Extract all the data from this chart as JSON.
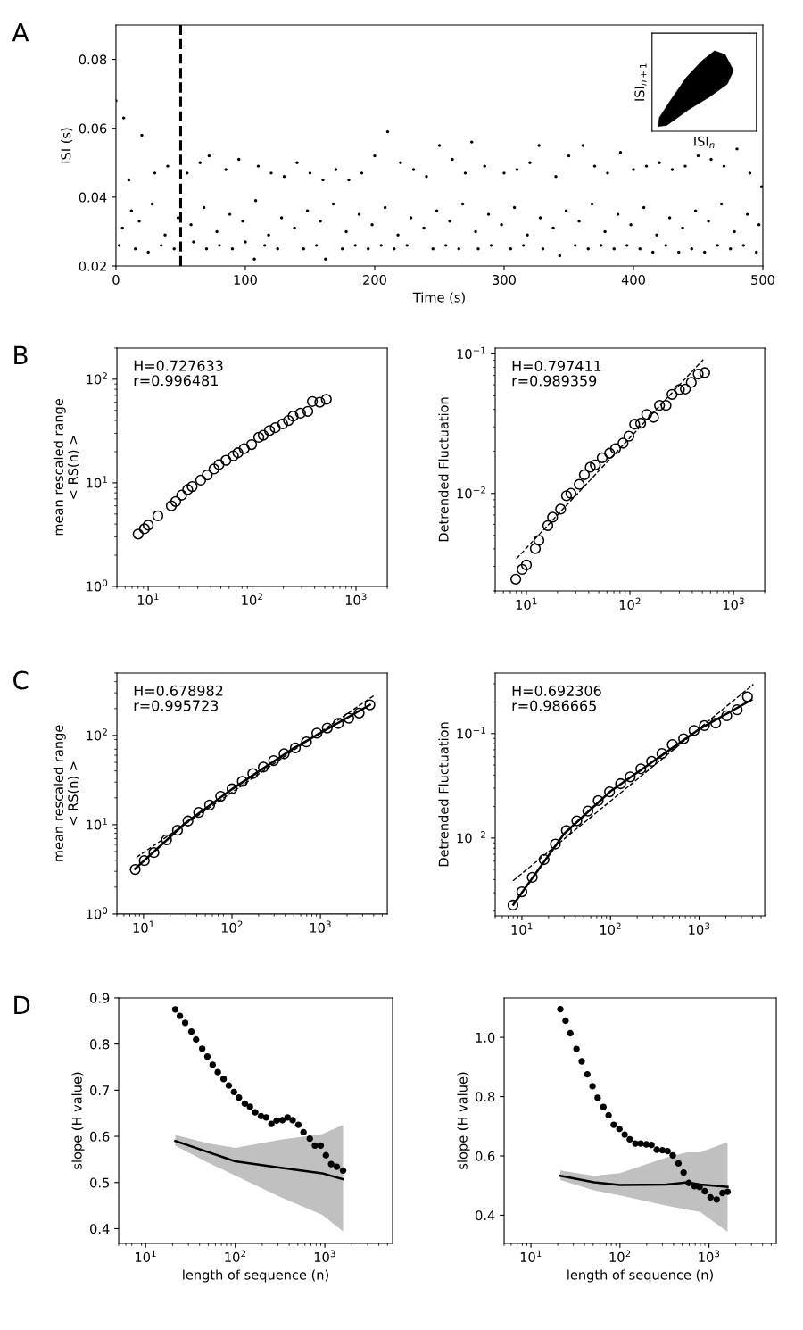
{
  "chart_data": [
    {
      "type": "scatter",
      "title": "A",
      "xlabel": "Time (s)",
      "ylabel": "ISI (s)",
      "xlim": [
        0,
        500
      ],
      "ylim": [
        0.02,
        0.09
      ],
      "xticks": [
        0,
        100,
        200,
        300,
        400,
        500
      ],
      "yticks": [
        0.02,
        0.04,
        0.06,
        0.08
      ],
      "ref_lines": [
        {
          "axis": "x",
          "value": 50,
          "line_style": "dashed",
          "color": "#000000"
        }
      ],
      "series": [
        {
          "color": "#000000",
          "marker": "circle",
          "x": [
            0,
            2.5,
            6,
            10,
            15,
            20,
            25,
            30,
            35,
            40,
            45,
            55,
            60,
            65,
            70,
            72,
            80,
            85,
            90,
            95,
            100,
            107,
            110,
            115,
            120,
            125,
            130,
            140,
            145,
            150,
            155,
            160,
            162,
            170,
            175,
            180,
            185,
            190,
            195,
            200,
            205,
            210,
            215,
            220,
            225,
            230,
            240,
            245,
            250,
            255,
            260,
            265,
            270,
            275,
            280,
            285,
            290,
            300,
            305,
            310,
            315,
            320,
            327,
            330,
            340,
            343,
            350,
            355,
            361,
            365,
            370,
            375,
            380,
            385,
            390,
            395,
            400,
            405,
            410,
            415,
            420,
            425,
            430,
            435,
            440,
            445,
            450,
            455,
            460,
            465,
            470,
            475,
            480,
            485,
            490,
            495,
            499,
            5,
            12,
            18,
            28,
            38,
            48,
            58,
            68,
            78,
            88,
            98,
            108,
            118,
            128,
            138,
            148,
            158,
            168,
            178,
            188,
            198,
            208,
            218,
            228,
            238,
            248,
            258,
            268,
            278,
            288,
            298,
            308,
            318,
            328,
            338,
            348,
            358,
            368,
            378,
            388,
            398,
            408,
            418,
            428,
            438,
            448,
            458,
            468,
            478,
            488,
            497
          ],
          "values": [
            0.068,
            0.026,
            0.063,
            0.045,
            0.025,
            0.058,
            0.024,
            0.047,
            0.026,
            0.049,
            0.025,
            0.047,
            0.027,
            0.05,
            0.025,
            0.052,
            0.026,
            0.048,
            0.025,
            0.051,
            0.027,
            0.022,
            0.049,
            0.026,
            0.047,
            0.025,
            0.046,
            0.05,
            0.025,
            0.047,
            0.026,
            0.045,
            0.022,
            0.048,
            0.025,
            0.045,
            0.026,
            0.047,
            0.025,
            0.052,
            0.026,
            0.059,
            0.025,
            0.05,
            0.026,
            0.048,
            0.046,
            0.025,
            0.055,
            0.026,
            0.051,
            0.025,
            0.047,
            0.056,
            0.025,
            0.049,
            0.026,
            0.047,
            0.025,
            0.048,
            0.026,
            0.05,
            0.055,
            0.025,
            0.046,
            0.023,
            0.052,
            0.026,
            0.055,
            0.025,
            0.049,
            0.026,
            0.047,
            0.025,
            0.053,
            0.026,
            0.048,
            0.025,
            0.049,
            0.024,
            0.05,
            0.026,
            0.048,
            0.024,
            0.049,
            0.025,
            0.052,
            0.024,
            0.051,
            0.026,
            0.049,
            0.025,
            0.054,
            0.026,
            0.047,
            0.024,
            0.043,
            0.031,
            0.036,
            0.033,
            0.038,
            0.029,
            0.034,
            0.032,
            0.037,
            0.03,
            0.035,
            0.033,
            0.039,
            0.029,
            0.034,
            0.031,
            0.036,
            0.033,
            0.038,
            0.03,
            0.035,
            0.032,
            0.037,
            0.029,
            0.034,
            0.031,
            0.036,
            0.033,
            0.038,
            0.03,
            0.035,
            0.032,
            0.037,
            0.029,
            0.034,
            0.031,
            0.036,
            0.033,
            0.038,
            0.03,
            0.035,
            0.032,
            0.037,
            0.029,
            0.034,
            0.031,
            0.036,
            0.033,
            0.038,
            0.03,
            0.035,
            0.032
          ]
        }
      ]
    },
    {
      "type": "other",
      "xlabel": "ISI$_{n}$",
      "ylabel": "ISI$_{n+1}$"
    },
    {
      "type": "scatter",
      "title": "B",
      "ylabel": "mean rescaled range\n< RS(n) >",
      "log": "xy",
      "xlim": [
        5,
        2000
      ],
      "ylim": [
        1,
        200
      ],
      "xticks": [
        {
          "value": 10,
          "label": "10$^{1}$"
        },
        {
          "value": 100,
          "label": "10$^{2}$"
        },
        {
          "value": 1000,
          "label": "10$^{3}$"
        }
      ],
      "yticks": [
        {
          "value": 1,
          "label": "10$^{0}$"
        },
        {
          "value": 10,
          "label": "10$^{1}$"
        },
        {
          "value": 100,
          "label": "10$^{2}$"
        }
      ],
      "annotations": [
        "H=0.727633\nr=0.996481"
      ],
      "series": [
        {
          "color": "#000000",
          "marker": "circle",
          "x": [
            8.0,
            9.2,
            10,
            12.4,
            16.7,
            18.4,
            21,
            24,
            26.5,
            32,
            37,
            43,
            48,
            56,
            66,
            73,
            84,
            99,
            116,
            128,
            147,
            167,
            197,
            224,
            248,
            292,
            344,
            380,
            448,
            518
          ],
          "values": [
            3.2,
            3.6,
            3.9,
            4.8,
            6.0,
            6.6,
            7.6,
            8.6,
            9.2,
            10.6,
            11.9,
            13.6,
            15.0,
            16.5,
            18.2,
            19.5,
            21.4,
            23.4,
            27.5,
            28.8,
            32,
            34,
            37,
            40,
            44,
            47,
            49,
            61,
            60,
            64
          ]
        }
      ]
    },
    {
      "type": "scatter",
      "ylabel": "Detrended Fluctuation",
      "log": "xy",
      "xlim": [
        5,
        2000
      ],
      "ylim": [
        0.002,
        0.11
      ],
      "xticks": [
        {
          "value": 10,
          "label": "10$^{1}$"
        },
        {
          "value": 100,
          "label": "10$^{2}$"
        },
        {
          "value": 1000,
          "label": "10$^{3}$"
        }
      ],
      "yticks": [
        {
          "value": 0.01,
          "label": "10$^{−2}$"
        },
        {
          "value": 0.1,
          "label": "10$^{−1}$"
        }
      ],
      "annotations": [
        "H=0.797411\nr=0.989359"
      ],
      "series": [
        {
          "type": "line",
          "line_style": "dashed",
          "marker": "none",
          "color": "#000000",
          "x": [
            8,
            510
          ],
          "values": [
            0.0034,
            0.091
          ]
        },
        {
          "color": "#000000",
          "marker": "circle",
          "x": [
            7.9,
            9.1,
            10,
            12.2,
            13.2,
            16.1,
            17.9,
            21.4,
            24.4,
            26.9,
            32.4,
            36.3,
            41.4,
            46.3,
            54,
            63.6,
            72.6,
            85.7,
            97.7,
            111,
            127,
            145,
            169,
            193,
            223,
            255,
            300,
            343,
            391,
            456,
            527
          ],
          "values": [
            0.00243,
            0.00285,
            0.00307,
            0.00402,
            0.0046,
            0.00588,
            0.00675,
            0.00771,
            0.00962,
            0.01,
            0.0116,
            0.0136,
            0.0154,
            0.016,
            0.018,
            0.0194,
            0.0209,
            0.0229,
            0.0257,
            0.0313,
            0.0318,
            0.0368,
            0.0351,
            0.0427,
            0.0427,
            0.0512,
            0.0554,
            0.056,
            0.0624,
            0.0716,
            0.0733
          ]
        }
      ]
    },
    {
      "type": "scatter",
      "title": "C",
      "ylabel": "mean rescaled range\n< RS(n) >",
      "log": "xy",
      "xlim": [
        5,
        5700
      ],
      "ylim": [
        1,
        500
      ],
      "xticks": [
        {
          "value": 10,
          "label": "10$^{1}$"
        },
        {
          "value": 100,
          "label": "10$^{2}$"
        },
        {
          "value": 1000,
          "label": "10$^{3}$"
        }
      ],
      "yticks": [
        {
          "value": 1,
          "label": "10$^{0}$"
        },
        {
          "value": 10,
          "label": "10$^{1}$"
        },
        {
          "value": 100,
          "label": "10$^{2}$"
        }
      ],
      "annotations": [
        "H=0.678982\nr=0.995723"
      ],
      "series": [
        {
          "type": "line",
          "line_style": "dashed",
          "marker": "none",
          "color": "#000000",
          "x": [
            8.3,
            4060
          ],
          "values": [
            4.3,
            281
          ]
        },
        {
          "type": "line",
          "line_style": "solid",
          "marker": "none",
          "color": "#000000",
          "x": [
            8,
            30,
            100,
            500,
            3625
          ],
          "values": [
            3.2,
            10.5,
            25,
            72,
            220
          ]
        },
        {
          "color": "#000000",
          "marker": "circle",
          "x": [
            8.05,
            10.2,
            13.1,
            18.2,
            24.2,
            31.8,
            42,
            55.9,
            74.5,
            100,
            131,
            172,
            226,
            296,
            388,
            521,
            695,
            912,
            1195,
            1592,
            2088,
            2741,
            3625
          ],
          "values": [
            3.15,
            3.96,
            4.87,
            6.77,
            8.65,
            11.0,
            13.7,
            16.6,
            20.8,
            25.2,
            30.6,
            37.3,
            44.1,
            52.2,
            62.2,
            72.5,
            84.5,
            106,
            121,
            136,
            156,
            178,
            220
          ]
        }
      ]
    },
    {
      "type": "scatter",
      "ylabel": "Detrended Fluctuation",
      "log": "xy",
      "xlim": [
        5,
        5500
      ],
      "ylim": [
        0.0018,
        0.38
      ],
      "xticks": [
        {
          "value": 10,
          "label": "10$^{1}$"
        },
        {
          "value": 100,
          "label": "10$^{2}$"
        },
        {
          "value": 1000,
          "label": "10$^{3}$"
        }
      ],
      "yticks": [
        {
          "value": 0.01,
          "label": "10$^{−2}$"
        },
        {
          "value": 0.1,
          "label": "10$^{−1}$"
        }
      ],
      "annotations": [
        "H=0.692306\nr=0.986665"
      ],
      "series": [
        {
          "type": "line",
          "line_style": "dashed",
          "marker": "none",
          "color": "#000000",
          "x": [
            7.94,
            4100
          ],
          "values": [
            0.0039,
            0.296
          ]
        },
        {
          "type": "line",
          "line_style": "solid",
          "marker": "none",
          "color": "#000000",
          "x": [
            8,
            30,
            100,
            1000,
            3900
          ],
          "values": [
            0.0023,
            0.011,
            0.028,
            0.11,
            0.21
          ]
        },
        {
          "color": "#000000",
          "marker": "circle",
          "x": [
            7.94,
            10,
            13.1,
            17.8,
            23.9,
            31.8,
            41.7,
            55.5,
            72.7,
            97.6,
            130,
            167,
            220,
            291,
            381,
            499,
            669,
            877,
            1148,
            1541,
            2051,
            2687,
            3515
          ],
          "values": [
            0.00228,
            0.00306,
            0.0042,
            0.00622,
            0.00877,
            0.0118,
            0.0146,
            0.0181,
            0.0228,
            0.0277,
            0.0331,
            0.0385,
            0.046,
            0.0542,
            0.0644,
            0.0784,
            0.0893,
            0.107,
            0.119,
            0.126,
            0.148,
            0.169,
            0.225
          ]
        }
      ]
    },
    {
      "type": "scatter",
      "title": "D",
      "xlabel": "length of sequence (n)",
      "ylabel": "slope (H value)",
      "log": "x",
      "xlim": [
        5,
        5700
      ],
      "ylim": [
        0.368,
        0.9
      ],
      "xticks": [
        {
          "value": 10,
          "label": "10$^{1}$"
        },
        {
          "value": 100,
          "label": "10$^{2}$"
        },
        {
          "value": 1000,
          "label": "10$^{3}$"
        }
      ],
      "yticks": [
        0.4,
        0.5,
        0.6,
        0.7,
        0.8,
        0.9
      ],
      "series": [
        {
          "type": "line",
          "line_style": "solid",
          "marker": "none",
          "color": "#000000",
          "x": [
            21.4,
            49.6,
            100,
            321,
            935,
            1596
          ],
          "values": [
            0.59,
            0.566,
            0.546,
            0.532,
            0.52,
            0.507
          ],
          "lower": [
            0.58,
            0.543,
            0.515,
            0.468,
            0.43,
            0.394
          ],
          "upper": [
            0.603,
            0.585,
            0.575,
            0.593,
            0.605,
            0.625
          ]
        },
        {
          "color": "#000000",
          "marker": "circle",
          "x": [
            21.4,
            24.1,
            27.6,
            32.4,
            36.5,
            42.8,
            48.9,
            55.9,
            63.9,
            74.1,
            84.7,
            96.8,
            110,
            128,
            146,
            167,
            194,
            221,
            253,
            289,
            335,
            383,
            437,
            506,
            578,
            679,
            776,
            899,
            1028,
            1175,
            1359,
            1596
          ],
          "values": [
            0.875,
            0.861,
            0.846,
            0.827,
            0.81,
            0.79,
            0.773,
            0.755,
            0.739,
            0.724,
            0.71,
            0.696,
            0.684,
            0.671,
            0.664,
            0.652,
            0.644,
            0.641,
            0.627,
            0.634,
            0.635,
            0.641,
            0.635,
            0.625,
            0.609,
            0.595,
            0.58,
            0.58,
            0.559,
            0.54,
            0.534,
            0.526
          ]
        }
      ]
    },
    {
      "type": "scatter",
      "xlabel": "length of sequence (n)",
      "ylabel": "slope (H value)",
      "log": "x",
      "xlim": [
        5,
        5700
      ],
      "ylim": [
        0.305,
        1.133
      ],
      "xticks": [
        {
          "value": 10,
          "label": "10$^{1}$"
        },
        {
          "value": 100,
          "label": "10$^{2}$"
        },
        {
          "value": 1000,
          "label": "10$^{3}$"
        }
      ],
      "yticks": [
        0.4,
        0.6,
        0.8,
        {
          "value": 1.0,
          "label": "1.0"
        }
      ],
      "series": [
        {
          "type": "line",
          "line_style": "solid",
          "marker": "none",
          "color": "#000000",
          "x": [
            21.4,
            51,
            100,
            333,
            570,
            796,
            1618
          ],
          "values": [
            0.533,
            0.511,
            0.502,
            0.504,
            0.511,
            0.504,
            0.496
          ],
          "lower": [
            0.519,
            0.484,
            0.467,
            0.432,
            0.419,
            0.411,
            0.344
          ],
          "upper": [
            0.551,
            0.533,
            0.542,
            0.595,
            0.612,
            0.612,
            0.647
          ]
        },
        {
          "color": "#000000",
          "marker": "circle",
          "x": [
            21.4,
            24.5,
            27.7,
            32.5,
            37.2,
            43.0,
            49.2,
            56.2,
            65.2,
            74.5,
            85.1,
            98.6,
            113,
            129,
            149,
            171,
            198,
            226,
            259,
            300,
            343,
            392,
            454,
            519,
            593,
            687,
            785,
            898,
            1040,
            1222,
            1416,
            1618
          ],
          "values": [
            1.095,
            1.056,
            1.014,
            0.961,
            0.919,
            0.875,
            0.835,
            0.796,
            0.765,
            0.737,
            0.705,
            0.691,
            0.672,
            0.656,
            0.642,
            0.642,
            0.639,
            0.637,
            0.621,
            0.619,
            0.616,
            0.602,
            0.575,
            0.544,
            0.509,
            0.498,
            0.495,
            0.481,
            0.46,
            0.453,
            0.475,
            0.479
          ]
        }
      ]
    }
  ]
}
